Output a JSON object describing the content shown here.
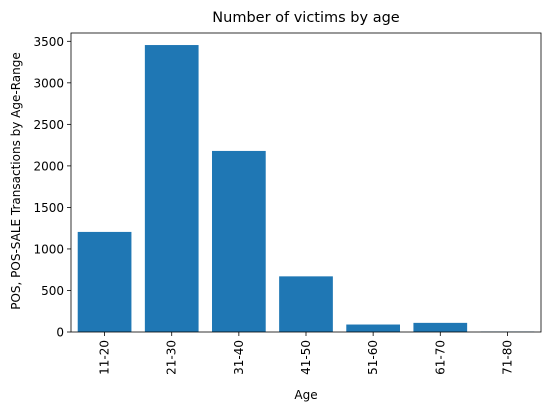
{
  "chart_data": {
    "type": "bar",
    "title": "Number of victims by age",
    "xlabel": "Age",
    "ylabel": "POS, POS-SALE Transactions by Age-Range",
    "categories": [
      "11-20",
      "21-30",
      "31-40",
      "41-50",
      "51-60",
      "61-70",
      "71-80"
    ],
    "values": [
      1205,
      3455,
      2180,
      670,
      90,
      110,
      5
    ],
    "ylim": [
      0,
      3600
    ],
    "yticks": [
      0,
      500,
      1000,
      1500,
      2000,
      2500,
      3000,
      3500
    ],
    "grid": false,
    "bar_color": "#1f77b4"
  }
}
